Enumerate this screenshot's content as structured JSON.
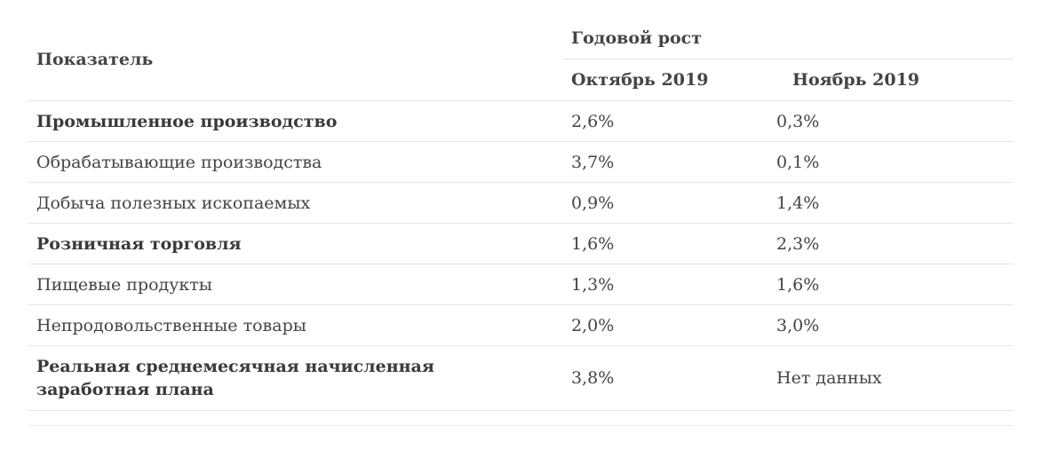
{
  "table": {
    "header": {
      "indicator": "Показатель",
      "group": "Годовой рост",
      "col_oct": "Октябрь 2019",
      "col_nov": "Ноябрь 2019"
    },
    "rows": [
      {
        "label": "Промышленное производство",
        "bold": true,
        "oct": "2,6%",
        "nov": "0,3%"
      },
      {
        "label": "Обрабатывающие производства",
        "bold": false,
        "oct": "3,7%",
        "nov": "0,1%"
      },
      {
        "label": "Добыча полезных ископаемых",
        "bold": false,
        "oct": "0,9%",
        "nov": "1,4%"
      },
      {
        "label": "Розничная торговля",
        "bold": true,
        "oct": "1,6%",
        "nov": "2,3%"
      },
      {
        "label": "Пищевые продукты",
        "bold": false,
        "oct": "1,3%",
        "nov": "1,6%"
      },
      {
        "label": "Непродовольственные товары",
        "bold": false,
        "oct": "2,0%",
        "nov": "3,0%"
      },
      {
        "label": "Реальная среднемесячная начисленная заработная плана",
        "bold": true,
        "oct": "3,8%",
        "nov": "Нет данных"
      }
    ]
  }
}
